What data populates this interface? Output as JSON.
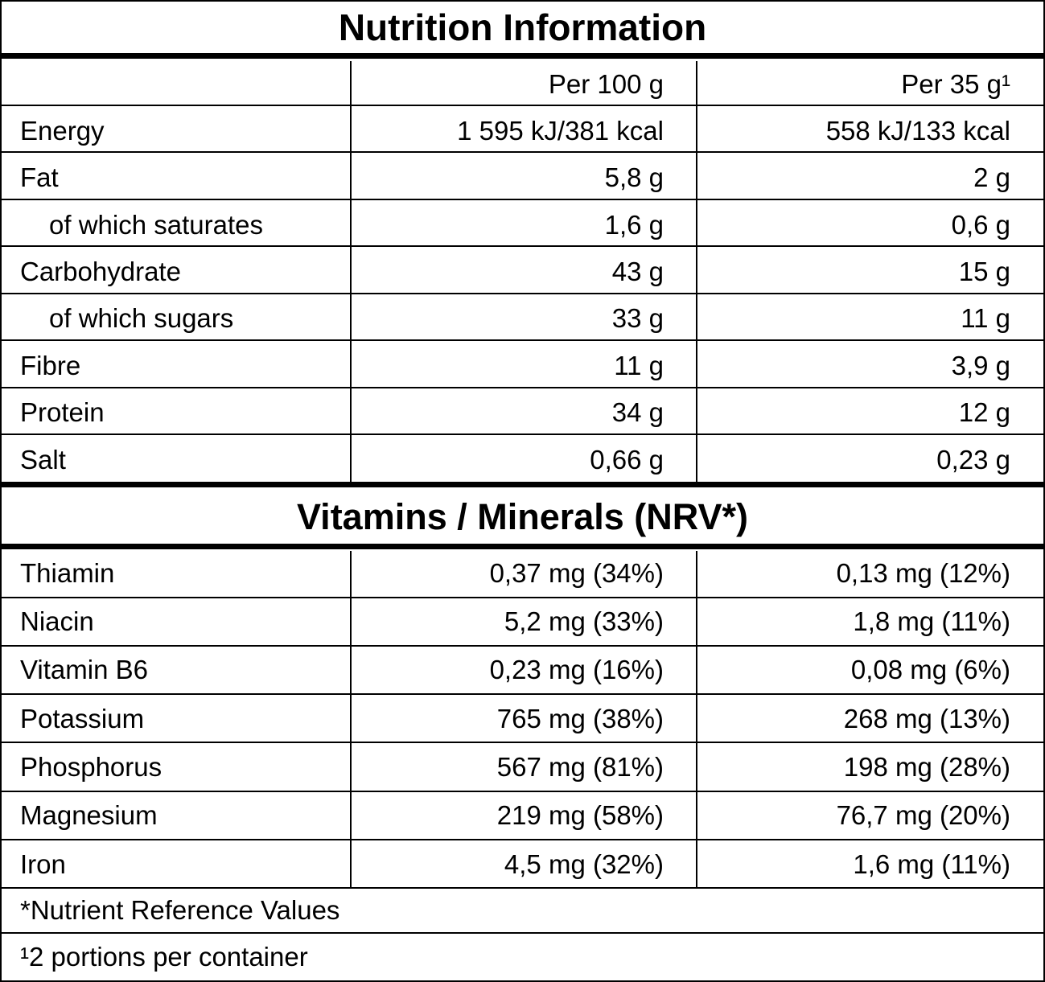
{
  "title": "Nutrition Information",
  "headers": [
    "",
    "Per 100 g",
    "Per 35 g¹"
  ],
  "nutrients": [
    {
      "name": "Energy",
      "per100": "1 595 kJ/381 kcal",
      "perPortion": "558 kJ/133 kcal",
      "indent": false
    },
    {
      "name": "Fat",
      "per100": "5,8 g",
      "perPortion": "2 g",
      "indent": false
    },
    {
      "name": "of which saturates",
      "per100": "1,6 g",
      "perPortion": "0,6 g",
      "indent": true
    },
    {
      "name": "Carbohydrate",
      "per100": "43 g",
      "perPortion": "15 g",
      "indent": false
    },
    {
      "name": "of which sugars",
      "per100": "33 g",
      "perPortion": "11 g",
      "indent": true
    },
    {
      "name": "Fibre",
      "per100": "11 g",
      "perPortion": "3,9 g",
      "indent": false
    },
    {
      "name": "Protein",
      "per100": "34 g",
      "perPortion": "12 g",
      "indent": false
    },
    {
      "name": "Salt",
      "per100": "0,66 g",
      "perPortion": "0,23 g",
      "indent": false
    }
  ],
  "vitamins_title": "Vitamins / Minerals (NRV*)",
  "vitamins": [
    {
      "name": "Thiamin",
      "per100": "0,37 mg (34%)",
      "perPortion": "0,13 mg (12%)"
    },
    {
      "name": "Niacin",
      "per100": "5,2 mg (33%)",
      "perPortion": "1,8 mg (11%)"
    },
    {
      "name": "Vitamin B6",
      "per100": "0,23 mg (16%)",
      "perPortion": "0,08 mg (6%)"
    },
    {
      "name": "Potassium",
      "per100": "765 mg (38%)",
      "perPortion": "268 mg (13%)"
    },
    {
      "name": "Phosphorus",
      "per100": "567 mg (81%)",
      "perPortion": "198 mg (28%)"
    },
    {
      "name": "Magnesium",
      "per100": "219 mg (58%)",
      "perPortion": "76,7 mg (20%)"
    },
    {
      "name": "Iron",
      "per100": "4,5 mg (32%)",
      "perPortion": "1,6 mg (11%)"
    }
  ],
  "footnotes": [
    "*Nutrient Reference Values",
    "¹2 portions per container"
  ]
}
